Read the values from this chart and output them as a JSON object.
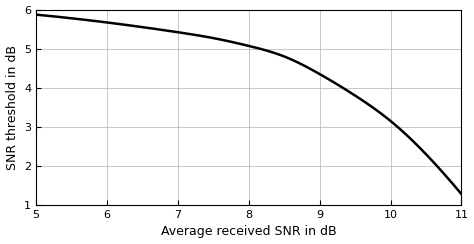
{
  "xlabel": "Average received SNR in dB",
  "ylabel": "SNR threshold in dB",
  "xlim": [
    5,
    11
  ],
  "ylim": [
    1,
    6
  ],
  "xticks": [
    5,
    6,
    7,
    8,
    9,
    10,
    11
  ],
  "yticks": [
    1,
    2,
    3,
    4,
    5,
    6
  ],
  "line_color": "#000000",
  "line_width": 1.8,
  "background_color": "#ffffff",
  "grid_color": "#b0b0b0",
  "grid_linewidth": 0.5,
  "font_size_label": 9,
  "font_size_tick": 8,
  "key_points_x": [
    5,
    6,
    7,
    7.5,
    8,
    8.5,
    9,
    9.5,
    10,
    10.5,
    11
  ],
  "key_points_y": [
    5.87,
    5.67,
    5.42,
    5.27,
    5.07,
    4.8,
    4.35,
    3.8,
    3.15,
    2.3,
    1.28
  ]
}
